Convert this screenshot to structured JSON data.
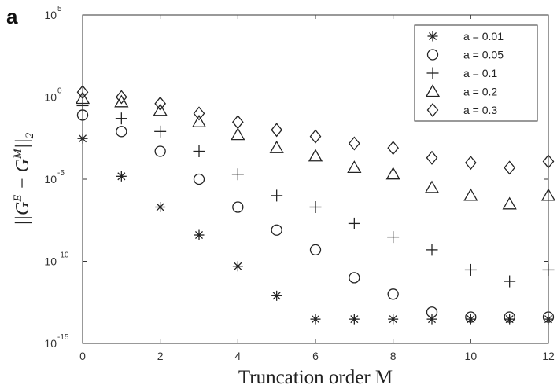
{
  "panel_label": "a",
  "chart_data": {
    "type": "scatter",
    "title": "",
    "xlabel": "Truncation order M",
    "ylabel": "||G^E − G^M||_2",
    "ylabel_parts": {
      "base": "||G",
      "sup1": "E",
      "mid": " − G",
      "sup2": "M",
      "end": "||",
      "sub": "2"
    },
    "xlim": [
      0,
      12
    ],
    "ylim": [
      1e-15,
      100000.0
    ],
    "yscale": "log",
    "x_ticks": [
      0,
      2,
      4,
      6,
      8,
      10,
      12
    ],
    "y_ticks": [
      {
        "value": 100000.0,
        "base": "10",
        "exp": "5"
      },
      {
        "value": 1,
        "base": "10",
        "exp": "0"
      },
      {
        "value": 1e-05,
        "base": "10",
        "exp": "-5"
      },
      {
        "value": 1e-10,
        "base": "10",
        "exp": "-10"
      },
      {
        "value": 1e-15,
        "base": "10",
        "exp": "-15"
      }
    ],
    "grid": false,
    "legend_position": "top-right",
    "x": [
      0,
      1,
      2,
      3,
      4,
      5,
      6,
      7,
      8,
      9,
      10,
      11,
      12
    ],
    "series": [
      {
        "name": "a = 0.01",
        "marker": "asterisk",
        "values": [
          0.003,
          1.5e-05,
          2e-07,
          4e-09,
          5e-11,
          8e-13,
          3e-14,
          3e-14,
          3e-14,
          3e-14,
          3e-14,
          3e-14,
          3e-14
        ]
      },
      {
        "name": "a = 0.05",
        "marker": "circle",
        "values": [
          0.08,
          0.008,
          0.0005,
          1e-05,
          2e-07,
          8e-09,
          5e-10,
          1e-11,
          1e-12,
          8e-14,
          4e-14,
          4e-14,
          4e-14
        ]
      },
      {
        "name": "a = 0.1",
        "marker": "plus",
        "values": [
          0.3,
          0.05,
          0.008,
          0.0005,
          2e-05,
          1e-06,
          2e-07,
          2e-08,
          3e-09,
          5e-10,
          3e-11,
          6e-12,
          3e-11
        ]
      },
      {
        "name": "a = 0.2",
        "marker": "triangle",
        "values": [
          0.8,
          0.5,
          0.15,
          0.03,
          0.005,
          0.0008,
          0.00025,
          5e-05,
          2e-05,
          3e-06,
          1e-06,
          3e-07,
          1e-06
        ]
      },
      {
        "name": "a = 0.3",
        "marker": "diamond",
        "values": [
          2,
          1,
          0.4,
          0.1,
          0.03,
          0.01,
          0.004,
          0.0015,
          0.0008,
          0.0002,
          0.0001,
          5e-05,
          0.00012
        ]
      }
    ]
  }
}
